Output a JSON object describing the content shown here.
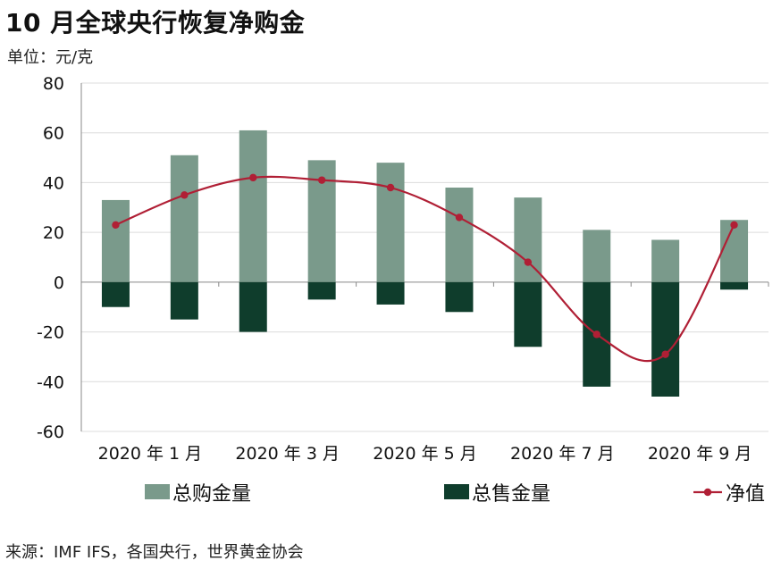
{
  "header": {
    "title": "10 月全球央行恢复净购金",
    "unit": "单位：元/克"
  },
  "footer": {
    "source": "来源：IMF IFS，各国央行，世界黄金协会"
  },
  "colors": {
    "purchase": "#7a9a8b",
    "sale": "#0f3d2c",
    "net": "#b01f35",
    "grid": "#dcdcdc",
    "axis": "#888888"
  },
  "chart_data": {
    "type": "bar",
    "title": "10 月全球央行恢复净购金",
    "ylabel": "单位：元/克",
    "ylim": [
      -60,
      80
    ],
    "yticks": [
      80,
      60,
      40,
      20,
      0,
      -20,
      -40,
      -60
    ],
    "grid": true,
    "legend_position": "bottom",
    "categories": [
      "2020年1月",
      "2020年2月",
      "2020年3月",
      "2020年4月",
      "2020年5月",
      "2020年6月",
      "2020年7月",
      "2020年8月",
      "2020年9月",
      "2020年10月"
    ],
    "xtick_labels": [
      {
        "index": 0,
        "label": "2020 年 1 月"
      },
      {
        "index": 2,
        "label": "2020 年 3 月"
      },
      {
        "index": 4,
        "label": "2020 年 5 月"
      },
      {
        "index": 6,
        "label": "2020 年 7 月"
      },
      {
        "index": 8,
        "label": "2020 年 9 月"
      }
    ],
    "series": [
      {
        "name": "总购金量",
        "type": "bar",
        "values": [
          33,
          51,
          61,
          49,
          48,
          38,
          34,
          21,
          17,
          25
        ]
      },
      {
        "name": "总售金量",
        "type": "bar",
        "values": [
          -10,
          -15,
          -20,
          -7,
          -9,
          -12,
          -26,
          -42,
          -46,
          -3
        ]
      },
      {
        "name": "净值",
        "type": "line",
        "values": [
          23,
          35,
          42,
          41,
          38,
          26,
          8,
          -21,
          -29,
          23
        ]
      }
    ]
  }
}
